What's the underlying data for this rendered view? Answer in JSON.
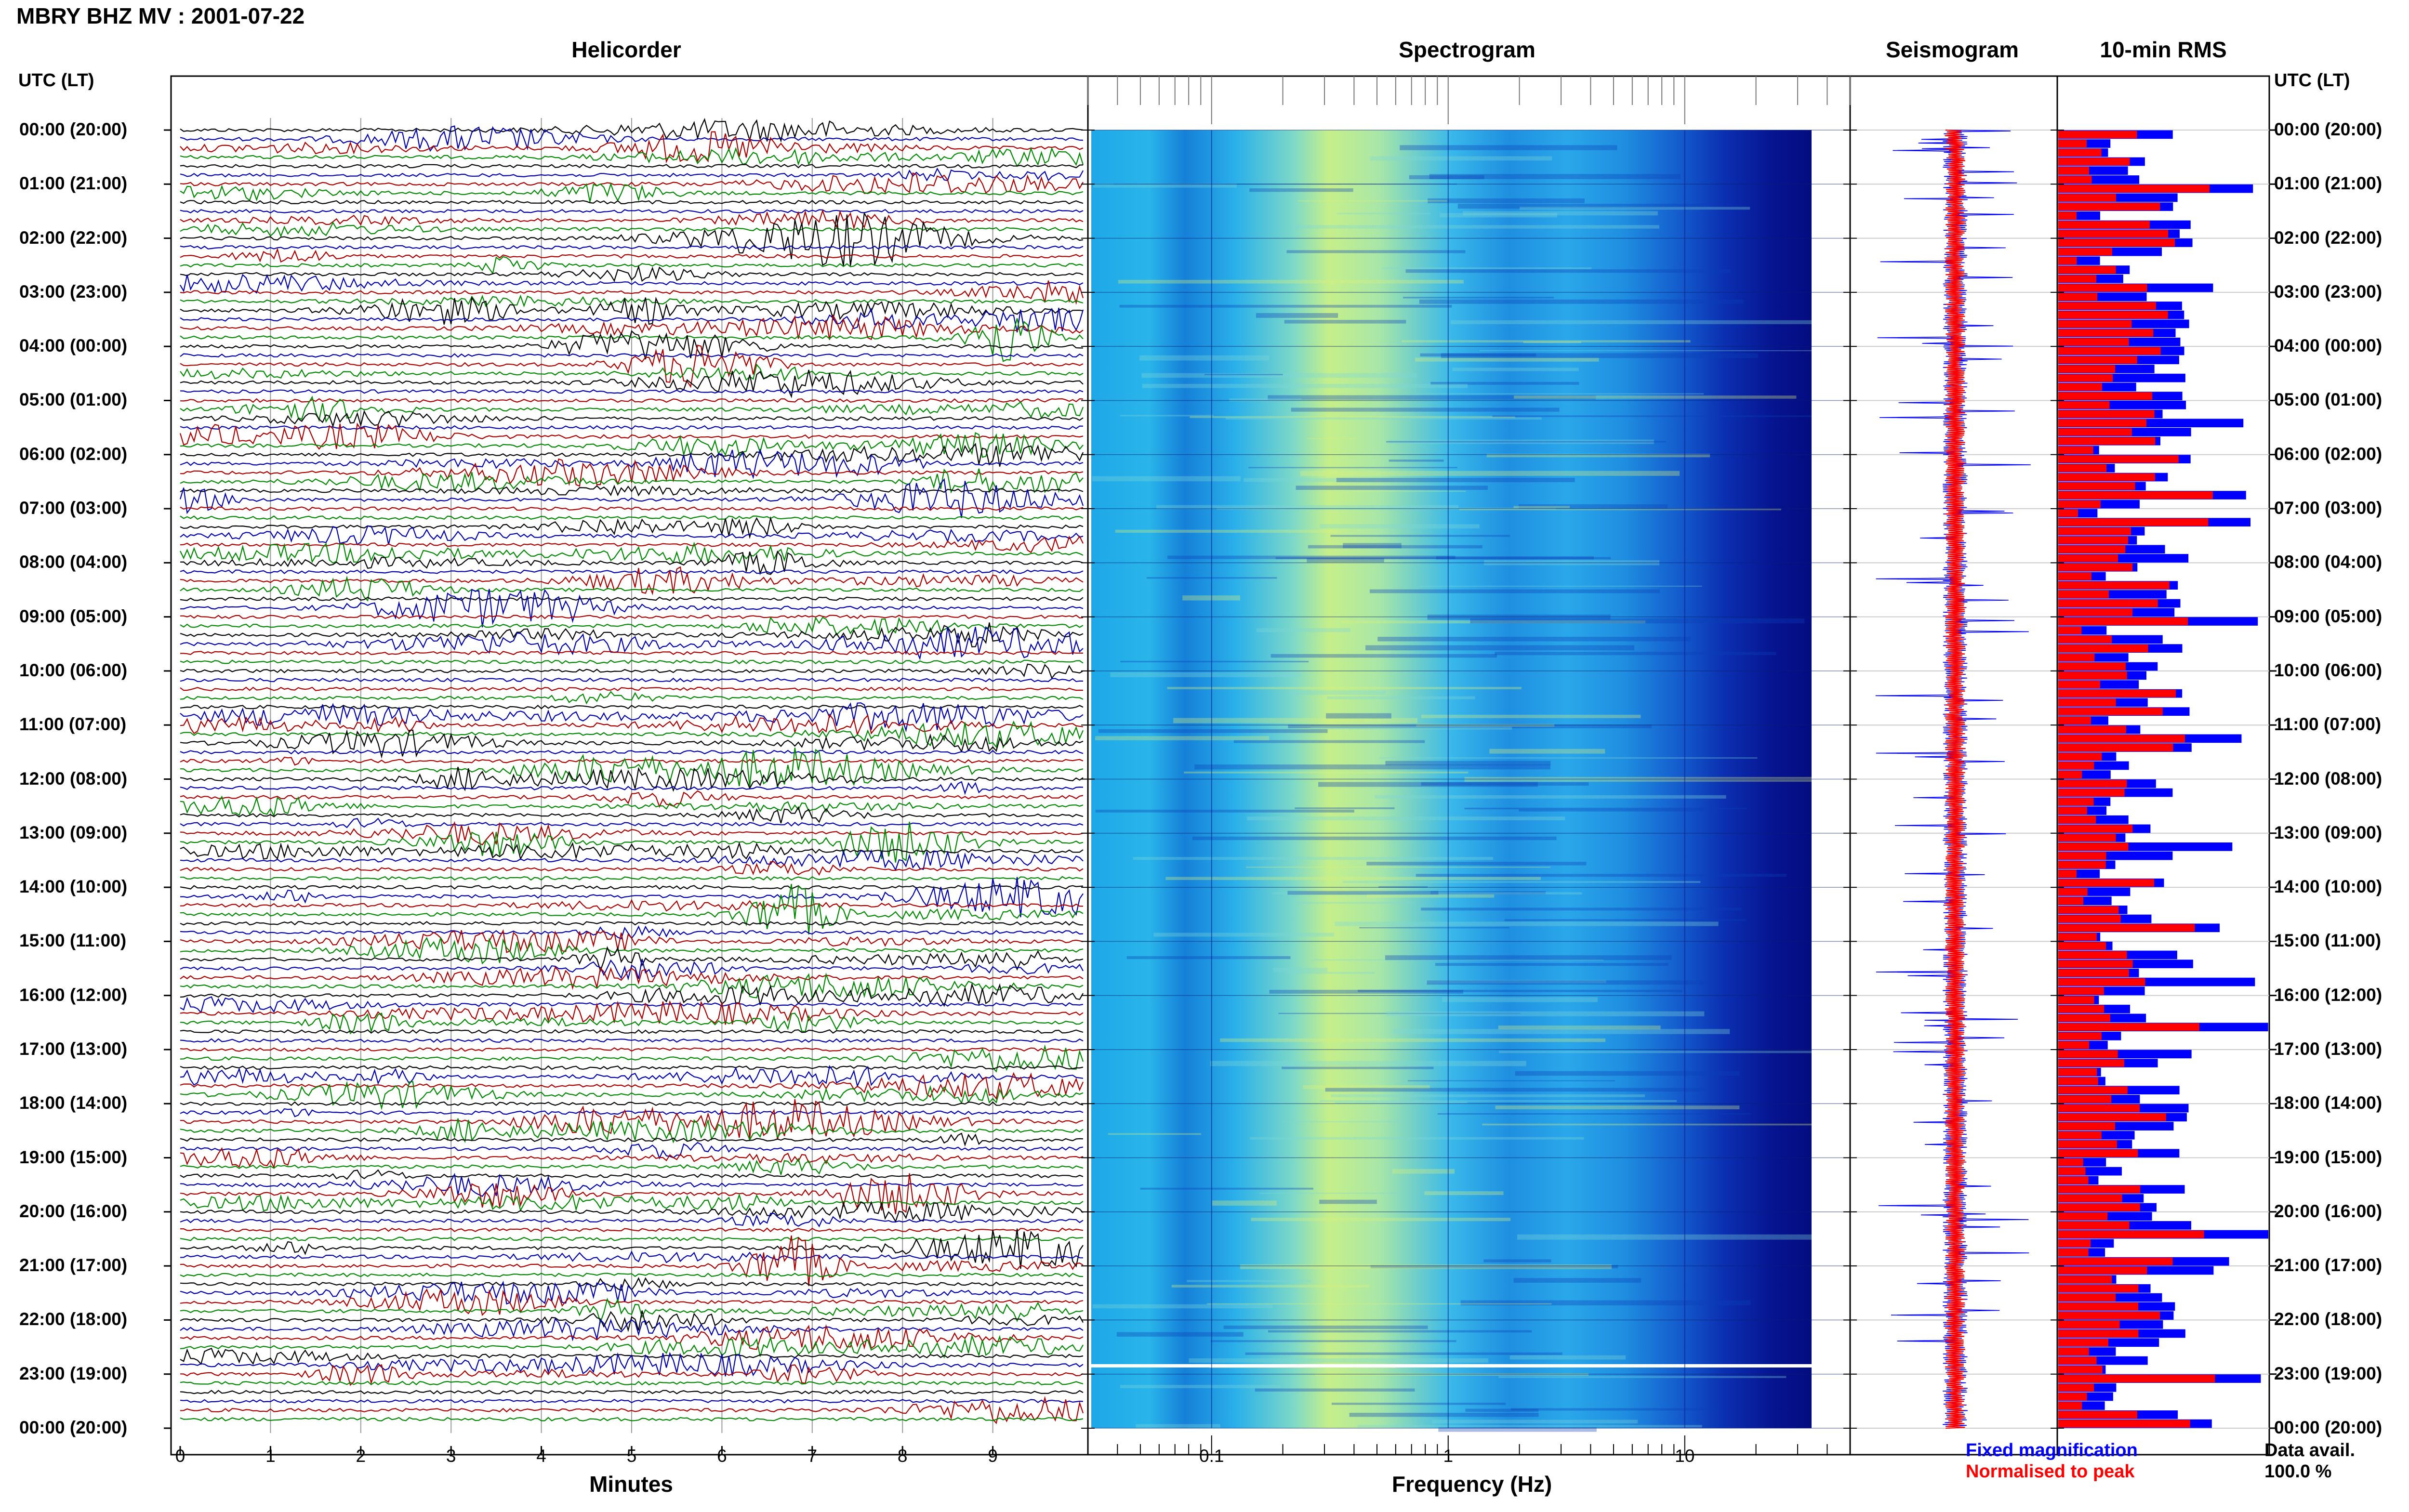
{
  "page_title": "MBRY BHZ MV : 2001-07-22",
  "panels": {
    "helicorder": "Helicorder",
    "spectrogram": "Spectrogram",
    "seismogram": "Seismogram",
    "rms": "10-min RMS"
  },
  "time_header": "UTC (LT)",
  "time_labels": [
    "00:00 (20:00)",
    "01:00 (21:00)",
    "02:00 (22:00)",
    "03:00 (23:00)",
    "04:00 (00:00)",
    "05:00 (01:00)",
    "06:00 (02:00)",
    "07:00 (03:00)",
    "08:00 (04:00)",
    "09:00 (05:00)",
    "10:00 (06:00)",
    "11:00 (07:00)",
    "12:00 (08:00)",
    "13:00 (09:00)",
    "14:00 (10:00)",
    "15:00 (11:00)",
    "16:00 (12:00)",
    "17:00 (13:00)",
    "18:00 (14:00)",
    "19:00 (15:00)",
    "20:00 (16:00)",
    "21:00 (17:00)",
    "22:00 (18:00)",
    "23:00 (19:00)",
    "00:00 (20:00)"
  ],
  "legend": {
    "fixed": "Fixed magnification",
    "normalised": "Normalised to peak",
    "fixed_color": "#0000ff",
    "normalised_color": "#ff0000",
    "data_avail_label": "Data avail.",
    "data_avail_value": "100.0 %"
  },
  "chart_data": [
    {
      "type": "line",
      "title": "Helicorder",
      "xlabel": "Minutes",
      "x_ticks": [
        "0",
        "1",
        "2",
        "3",
        "4",
        "5",
        "6",
        "7",
        "8",
        "9"
      ],
      "xlim": [
        0,
        10
      ],
      "rows": 144,
      "row_minutes": 10,
      "trace_colors": [
        "#000000",
        "#0000aa",
        "#aa0000",
        "#008800"
      ]
    },
    {
      "type": "heatmap",
      "title": "Spectrogram",
      "xlabel": "Frequency (Hz)",
      "x_scale": "log",
      "x_ticks": [
        "0.1",
        "1",
        "10"
      ],
      "xlim": [
        0.03,
        50
      ]
    },
    {
      "type": "line",
      "title": "Seismogram",
      "series": [
        {
          "name": "Fixed magnification",
          "color": "#0000ff"
        },
        {
          "name": "Normalised to peak",
          "color": "#ff0000"
        }
      ]
    },
    {
      "type": "bar",
      "title": "10-min RMS",
      "bins": 144,
      "series": [
        {
          "name": "Fixed magnification",
          "color": "#0000ff"
        },
        {
          "name": "Normalised to peak",
          "color": "#ff0000"
        }
      ]
    }
  ]
}
